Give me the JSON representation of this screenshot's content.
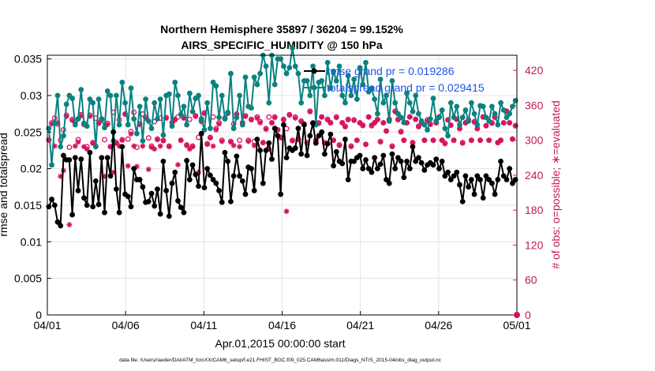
{
  "chart_data": {
    "type": "line",
    "title_line1": "Northern Hemisphere 35897 / 36204 = 99.152%",
    "title_line2": "AIRS_SPECIFIC_HUMIDITY @ 150 hPa",
    "xlabel": "Apr.01,2015 00:00:00 start",
    "ylabel": "rmse and totalspread",
    "ylabel_right": "# of obs: o=possible; ∗=evaluated",
    "footnote": "data file: /Users/raeder/DAI/ATM_forcXX/CAM6_setup/f.e21.FHIST_BGC.f09_025.CAM6assim.011/Diags_NTrS_2015-04/obs_diag_output.nc",
    "xlim": [
      0,
      30
    ],
    "ylim": [
      0,
      0.0355
    ],
    "ylim_right": [
      0,
      446
    ],
    "x_ticks": [
      0,
      5,
      10,
      15,
      20,
      25,
      30
    ],
    "x_tick_labels": [
      "04/01",
      "04/06",
      "04/11",
      "04/16",
      "04/21",
      "04/26",
      "05/01"
    ],
    "y_ticks": [
      0,
      0.005,
      0.01,
      0.015,
      0.02,
      0.025,
      0.03,
      0.035
    ],
    "y_tick_labels": [
      "0",
      "0.005",
      "0.01",
      "0.015",
      "0.02",
      "0.025",
      "0.03",
      "0.035"
    ],
    "y_ticks_right": [
      0,
      60,
      120,
      180,
      240,
      300,
      360,
      420
    ],
    "y_tick_labels_right": [
      "0",
      "60",
      "120",
      "180",
      "240",
      "300",
      "360",
      "420"
    ],
    "colors": {
      "rmse": "#000000",
      "spread": "#0a8280",
      "obs": "#d6135e",
      "legend_text": "#1a56e8",
      "grid": "#e3e3e3"
    },
    "series": [
      {
        "name": "rmse grand pr = 0.019286",
        "values": [
          0.0148,
          0.0158,
          0.015,
          0.0127,
          0.0122,
          0.0218,
          0.0212,
          0.0212,
          0.0137,
          0.0215,
          0.017,
          0.0213,
          0.016,
          0.015,
          0.0222,
          0.0148,
          0.0183,
          0.0151,
          0.0215,
          0.014,
          0.0215,
          0.019,
          0.025,
          0.0172,
          0.014,
          0.023,
          0.0165,
          0.0162,
          0.0148,
          0.02,
          0.0185,
          0.0185,
          0.0175,
          0.0154,
          0.0155,
          0.0166,
          0.0149,
          0.0172,
          0.0138,
          0.021,
          0.017,
          0.0135,
          0.018,
          0.0195,
          0.0156,
          0.0147,
          0.014,
          0.0211,
          0.0185,
          0.0205,
          0.0192,
          0.0176,
          0.0248,
          0.0174,
          0.02,
          0.0191,
          0.0185,
          0.018,
          0.017,
          0.0154,
          0.0222,
          0.021,
          0.0155,
          0.019,
          0.0217,
          0.019,
          0.0183,
          0.0165,
          0.0202,
          0.02,
          0.017,
          0.024,
          0.0225,
          0.018,
          0.0225,
          0.0235,
          0.0213,
          0.0255,
          0.0245,
          0.0165,
          0.026,
          0.0215,
          0.0228,
          0.0225,
          0.0228,
          0.0255,
          0.022,
          0.026,
          0.0218,
          0.0245,
          0.0262,
          0.0235,
          0.0245,
          0.025,
          0.022,
          0.0234,
          0.0247,
          0.0204,
          0.0223,
          0.021,
          0.0207,
          0.024,
          0.0185,
          0.021,
          0.021,
          0.0215,
          0.0218,
          0.02,
          0.0212,
          0.02,
          0.0195,
          0.0215,
          0.02,
          0.0206,
          0.0218,
          0.0185,
          0.018,
          0.022,
          0.02,
          0.0215,
          0.021,
          0.0188,
          0.021,
          0.02,
          0.023,
          0.021,
          0.0215,
          0.0208,
          0.0198,
          0.0205,
          0.0208,
          0.0205,
          0.0213,
          0.02,
          0.021,
          0.019,
          0.0195,
          0.0185,
          0.019,
          0.0195,
          0.0178,
          0.0155,
          0.019,
          0.0175,
          0.0185,
          0.0165,
          0.019,
          0.0185,
          0.016,
          0.019,
          0.0185,
          0.018,
          0.0165,
          0.0185,
          0.021,
          0.019,
          0.0185,
          0.02,
          0.018,
          0.0185
        ]
      },
      {
        "name": "totalspread grand pr = 0.029415",
        "values": [
          0.0255,
          0.0205,
          0.0262,
          0.03,
          0.023,
          0.0245,
          0.0288,
          0.03,
          0.0296,
          0.026,
          0.0268,
          0.0308,
          0.0262,
          0.0258,
          0.0295,
          0.029,
          0.023,
          0.0295,
          0.0268,
          0.0256,
          0.0306,
          0.03,
          0.0238,
          0.03,
          0.026,
          0.0318,
          0.029,
          0.026,
          0.031,
          0.0268,
          0.0248,
          0.0285,
          0.0238,
          0.0295,
          0.0265,
          0.0255,
          0.029,
          0.0268,
          0.0295,
          0.0246,
          0.03,
          0.0302,
          0.0258,
          0.0318,
          0.03,
          0.0274,
          0.0285,
          0.026,
          0.0303,
          0.0278,
          0.0296,
          0.03,
          0.0268,
          0.0253,
          0.029,
          0.0255,
          0.0318,
          0.0313,
          0.027,
          0.03,
          0.0268,
          0.0277,
          0.033,
          0.0255,
          0.027,
          0.03,
          0.026,
          0.0325,
          0.0285,
          0.0283,
          0.0325,
          0.0315,
          0.033,
          0.0355,
          0.034,
          0.029,
          0.0355,
          0.0315,
          0.035,
          0.035,
          0.034,
          0.033,
          0.0338,
          0.0365,
          0.034,
          0.033,
          0.029,
          0.032,
          0.032,
          0.03,
          0.034,
          0.026,
          0.0318,
          0.032,
          0.03,
          0.0345,
          0.031,
          0.0333,
          0.032,
          0.034,
          0.03,
          0.029,
          0.0327,
          0.03,
          0.0322,
          0.0295,
          0.0338,
          0.0315,
          0.0345,
          0.0305,
          0.031,
          0.0295,
          0.0275,
          0.0322,
          0.029,
          0.03,
          0.0265,
          0.032,
          0.029,
          0.0275,
          0.027,
          0.0263,
          0.0303,
          0.029,
          0.0278,
          0.03,
          0.0275,
          0.0265,
          0.026,
          0.0253,
          0.0268,
          0.0296,
          0.0265,
          0.027,
          0.028,
          0.0255,
          0.0245,
          0.029,
          0.027,
          0.0285,
          0.026,
          0.027,
          0.028,
          0.0265,
          0.029,
          0.0275,
          0.026,
          0.0286,
          0.0285,
          0.027,
          0.0265,
          0.0285,
          0.0275,
          0.026,
          0.029,
          0.028,
          0.027,
          0.0275,
          0.0285,
          0.0293
        ]
      }
    ],
    "obs_possible": [
      301,
      330,
      338,
      328,
      300,
      318,
      343,
      288,
      336,
      331,
      301,
      344,
      327,
      289,
      343,
      296,
      338,
      330,
      336,
      301,
      329,
      289,
      348,
      296,
      335,
      301,
      345,
      302,
      315,
      348,
      288,
      328,
      345,
      340,
      304,
      290,
      332,
      302,
      338,
      300,
      339,
      290,
      330,
      336,
      340,
      300,
      339,
      292,
      336,
      290,
      342,
      305,
      333,
      347,
      294,
      305,
      340,
      320,
      330,
      300,
      338,
      347,
      298,
      328,
      345,
      300,
      330,
      342,
      300,
      336,
      298,
      340,
      332,
      296,
      320,
      340,
      330,
      340,
      318,
      305,
      336,
      320,
      344,
      300,
      340,
      302,
      333,
      328,
      296,
      350,
      330,
      300,
      330,
      340,
      296,
      336,
      330,
      300,
      340,
      292,
      330,
      324,
      336,
      290,
      335,
      300,
      330,
      326,
      293,
      340,
      325,
      330,
      336,
      298,
      330,
      316,
      336,
      290,
      350,
      336,
      315,
      300,
      330,
      340,
      296,
      336,
      324,
      330,
      300,
      335,
      328,
      300,
      330,
      340,
      300,
      295,
      335,
      326,
      300,
      336,
      320,
      296,
      330,
      335,
      300,
      332,
      320,
      300,
      340,
      325,
      300,
      330,
      340,
      296,
      300,
      330,
      350,
      330,
      302,
      325
    ],
    "obs_evaluated": [
      300,
      328,
      290,
      330,
      238,
      248,
      341,
      155,
      334,
      290,
      297,
      342,
      289,
      285,
      341,
      295,
      290,
      329,
      335,
      238,
      327,
      289,
      245,
      295,
      290,
      300,
      345,
      256,
      311,
      290,
      255,
      327,
      290,
      338,
      250,
      288,
      285,
      301,
      290,
      299,
      338,
      289,
      330,
      335,
      258,
      300,
      338,
      291,
      285,
      289,
      341,
      245,
      332,
      346,
      293,
      304,
      290,
      318,
      328,
      298,
      337,
      346,
      297,
      291,
      344,
      289,
      329,
      341,
      298,
      335,
      291,
      338,
      330,
      296,
      319,
      285,
      330,
      339,
      318,
      304,
      335,
      178,
      343,
      299,
      338,
      301,
      332,
      327,
      295,
      349,
      330,
      300,
      329,
      340,
      295,
      335,
      330,
      300,
      339,
      291,
      330,
      323,
      335,
      289,
      334,
      300,
      330,
      325,
      293,
      340,
      326,
      330,
      335,
      297,
      330,
      316,
      335,
      289,
      349,
      335,
      314,
      300,
      330,
      340,
      296,
      336,
      323,
      330,
      300,
      333,
      327,
      300,
      330,
      340,
      300,
      294,
      335,
      326,
      300,
      336,
      320,
      295,
      330,
      334,
      300,
      331,
      320,
      300,
      340,
      325,
      300,
      329,
      339,
      296,
      300,
      330,
      350,
      330,
      302,
      325
    ]
  }
}
